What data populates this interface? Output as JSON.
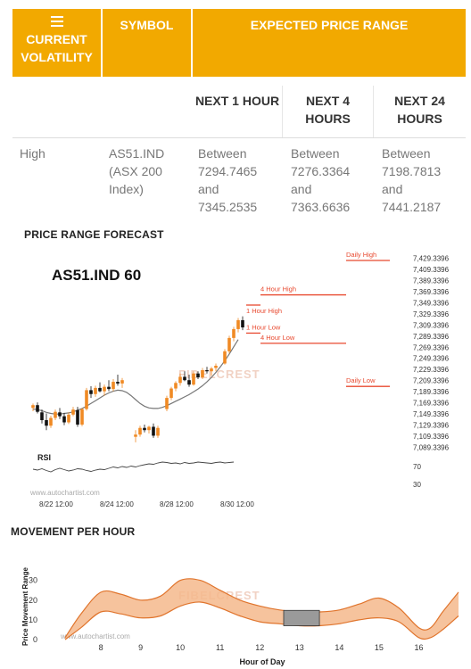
{
  "table": {
    "header": {
      "col1": "CURRENT VOLATILITY",
      "col2": "SYMBOL",
      "col3": "EXPECTED PRICE RANGE"
    },
    "subheader": [
      "NEXT 1 HOUR",
      "NEXT 4 HOURS",
      "NEXT 24 HOURS"
    ],
    "row": {
      "volatility": "High",
      "symbol": "AS51.IND (ASX 200 Index)",
      "ranges": [
        {
          "word1": "Between",
          "low": "7294.7465",
          "word2": "and",
          "high": "7345.2535"
        },
        {
          "word1": "Between",
          "low": "7276.3364",
          "word2": "and",
          "high": "7363.6636"
        },
        {
          "word1": "Between",
          "low": "7198.7813",
          "word2": "and",
          "high": "7441.2187"
        }
      ]
    },
    "colors": {
      "header_bg": "#f2a900",
      "header_text": "#ffffff"
    }
  },
  "forecast": {
    "section_title": "PRICE RANGE FORECAST",
    "chart_title": "AS51.IND 60",
    "rsi_label": "RSI",
    "watermark_url": "www.autochartist.com",
    "watermark_brand": "FIBELCREST"
  },
  "movement": {
    "section_title": "MOVEMENT PER HOUR",
    "watermark_url": "www.autochartist.com",
    "watermark_brand": "FIBELCREST"
  },
  "chart_data": [
    {
      "type": "candlestick",
      "title": "AS51.IND 60",
      "x_ticks": [
        "8/22 12:00",
        "8/24 12:00",
        "8/28 12:00",
        "8/30 12:00"
      ],
      "y_ticks": [
        "7,429.3396",
        "7,409.3396",
        "7,389.3396",
        "7,369.3396",
        "7,349.3396",
        "7,329.3396",
        "7,309.3396",
        "7,289.3396",
        "7,269.3396",
        "7,249.3396",
        "7,229.3396",
        "7,209.3396",
        "7,189.3396",
        "7,169.3396",
        "7,149.3396",
        "7,129.3396",
        "7,109.3396",
        "7,089.3396"
      ],
      "ylim": [
        7085,
        7432
      ],
      "levels": [
        {
          "label": "Daily High",
          "value": 7441.2187
        },
        {
          "label": "4 Hour High",
          "value": 7363.6636
        },
        {
          "label": "1 Hour High",
          "value": 7345.2535
        },
        {
          "label": "1 Hour Low",
          "value": 7294.7465
        },
        {
          "label": "4 Hour Low",
          "value": 7276.3364
        },
        {
          "label": "Daily Low",
          "value": 7198.7813
        }
      ],
      "candles": [
        [
          7160,
          7168,
          7154,
          7165
        ],
        [
          7165,
          7170,
          7150,
          7153
        ],
        [
          7152,
          7157,
          7132,
          7138
        ],
        [
          7138,
          7150,
          7120,
          7128
        ],
        [
          7128,
          7146,
          7124,
          7142
        ],
        [
          7142,
          7157,
          7138,
          7153
        ],
        [
          7152,
          7160,
          7140,
          7145
        ],
        [
          7145,
          7151,
          7129,
          7134
        ],
        [
          7134,
          7152,
          7131,
          7148
        ],
        [
          7148,
          7162,
          7145,
          7157
        ],
        [
          7156,
          7162,
          7126,
          7130
        ],
        [
          7130,
          7160,
          7127,
          7158
        ],
        [
          7158,
          7196,
          7155,
          7192
        ],
        [
          7192,
          7199,
          7178,
          7185
        ],
        [
          7185,
          7200,
          7180,
          7196
        ],
        [
          7196,
          7206,
          7188,
          7190
        ],
        [
          7190,
          7202,
          7182,
          7198
        ],
        [
          7198,
          7210,
          7190,
          7194
        ],
        [
          7194,
          7212,
          7190,
          7207
        ],
        [
          7207,
          7220,
          7200,
          7204
        ],
        [
          7204,
          7214,
          7196,
          7210
        ],
        [
          null,
          null,
          null,
          null
        ],
        [
          null,
          null,
          null,
          null
        ],
        [
          7108,
          7120,
          7098,
          7112
        ],
        [
          7112,
          7128,
          7108,
          7124
        ],
        [
          7124,
          7130,
          7116,
          7120
        ],
        [
          7120,
          7128,
          7114,
          7126
        ],
        [
          7126,
          7132,
          7106,
          7110
        ],
        [
          7110,
          7128,
          7106,
          7124
        ],
        [
          null,
          null,
          null,
          null
        ],
        [
          7158,
          7182,
          7154,
          7178
        ],
        [
          7178,
          7198,
          7174,
          7195
        ],
        [
          7195,
          7208,
          7190,
          7205
        ],
        [
          7205,
          7222,
          7200,
          7216
        ],
        [
          7216,
          7226,
          7208,
          7210
        ],
        [
          7210,
          7220,
          7198,
          7202
        ],
        [
          7202,
          7226,
          7200,
          7222
        ],
        [
          7222,
          7226,
          7212,
          7215
        ],
        [
          7215,
          7232,
          7212,
          7228
        ],
        [
          7228,
          7234,
          7222,
          7226
        ],
        [
          7226,
          7234,
          7218,
          7231
        ],
        [
          7232,
          7240,
          7226,
          7236
        ],
        [
          null,
          null,
          null,
          null
        ],
        [
          7240,
          7266,
          7238,
          7262
        ],
        [
          7262,
          7290,
          7258,
          7286
        ],
        [
          7286,
          7306,
          7280,
          7302
        ],
        [
          7302,
          7322,
          7296,
          7318
        ],
        [
          7318,
          7325,
          7300,
          7305
        ]
      ],
      "moving_average": [
        7158,
        7157,
        7155,
        7152,
        7150,
        7149,
        7149,
        7150,
        7151,
        7153,
        7156,
        7159,
        7163,
        7168,
        7173,
        7178,
        7183,
        7187,
        7190,
        7192,
        7191,
        7188,
        7182,
        7175,
        7168,
        7163,
        7160,
        7159,
        7159,
        7161,
        7164,
        7168,
        7172,
        7176,
        7180,
        7184,
        7189,
        7194,
        7200,
        7207,
        7215,
        7224,
        7234,
        7245,
        7257,
        7270,
        7283
      ],
      "rsi_ticks": [
        "70",
        "30"
      ]
    },
    {
      "type": "area",
      "x_ticks": [
        8,
        9,
        10,
        11,
        12,
        13,
        14,
        15,
        16
      ],
      "y_ticks": [
        0,
        10,
        20,
        30
      ],
      "xlabel": "Hour of Day",
      "ylabel": "Price Movement Range",
      "xlim": [
        7.1,
        17.0
      ],
      "ylim": [
        0,
        33
      ],
      "x": [
        7.1,
        7.5,
        8.0,
        8.5,
        9.0,
        9.5,
        10.0,
        10.5,
        11.0,
        11.5,
        12.0,
        12.5,
        13.0,
        13.5,
        14.0,
        14.5,
        15.0,
        15.5,
        16.0,
        16.3,
        16.6,
        17.0
      ],
      "upper": [
        1,
        13,
        24,
        23,
        20,
        22,
        30,
        30,
        25,
        20,
        17,
        15,
        14,
        14,
        15,
        18,
        21,
        16,
        6,
        6,
        14,
        24
      ],
      "lower": [
        0,
        6,
        14,
        13,
        11,
        12,
        17,
        19,
        16,
        12,
        9,
        8,
        7,
        7,
        8,
        10,
        11,
        9,
        1,
        1,
        5,
        12
      ],
      "highlight": {
        "from": 12.6,
        "to": 13.5
      }
    }
  ]
}
